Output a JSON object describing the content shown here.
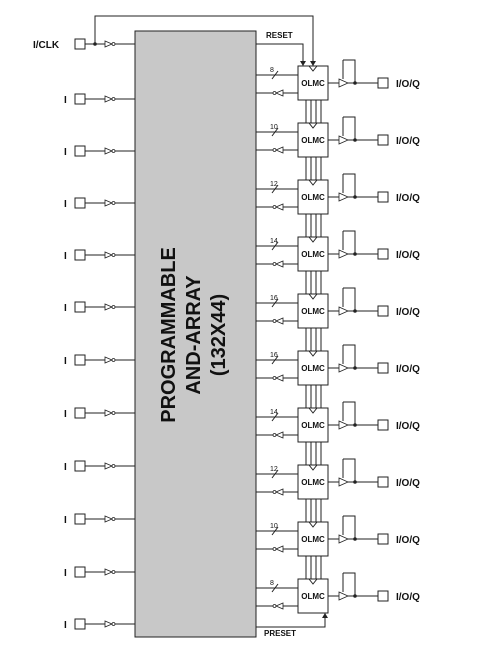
{
  "clock_input": {
    "label": "I/CLK"
  },
  "inputs": [
    "I",
    "I",
    "I",
    "I",
    "I",
    "I",
    "I",
    "I",
    "I",
    "I",
    "I"
  ],
  "array": {
    "line1": "PROGRAMMABLE",
    "line2": "AND-ARRAY",
    "line3": "(132X44)",
    "fill": "#c8c8c8"
  },
  "reset_label": "RESET",
  "preset_label": "PRESET",
  "olmc_label": "OLMC",
  "olmcs": [
    {
      "terms": "8",
      "pin": "I/O/Q"
    },
    {
      "terms": "10",
      "pin": "I/O/Q"
    },
    {
      "terms": "12",
      "pin": "I/O/Q"
    },
    {
      "terms": "14",
      "pin": "I/O/Q"
    },
    {
      "terms": "16",
      "pin": "I/O/Q"
    },
    {
      "terms": "16",
      "pin": "I/O/Q"
    },
    {
      "terms": "14",
      "pin": "I/O/Q"
    },
    {
      "terms": "12",
      "pin": "I/O/Q"
    },
    {
      "terms": "10",
      "pin": "I/O/Q"
    },
    {
      "terms": "8",
      "pin": "I/O/Q"
    }
  ]
}
